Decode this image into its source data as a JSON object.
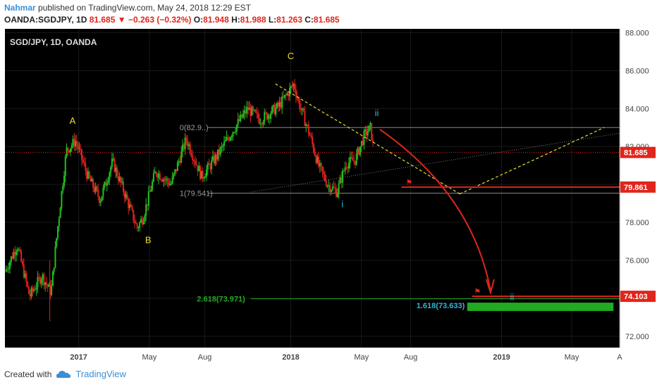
{
  "header": {
    "author": "Nahmar",
    "published": "published on TradingView.com, May 24, 2018 12:29 EST",
    "symbol": "OANDA:SGDJPY, 1D",
    "last": "81.685",
    "change": "−0.263 (−0.32%)",
    "o_label": "O:",
    "o_val": "81.948",
    "h_label": "H:",
    "h_val": "81.988",
    "l_label": "L:",
    "l_val": "81.263",
    "c_label": "C:",
    "c_val": "81.685"
  },
  "chart_title": "SGD/JPY, 1D, OANDA",
  "footer": {
    "created": "Created with",
    "brand": "TradingView"
  },
  "colors": {
    "up": "#22c022",
    "down": "#e22020",
    "bg": "#000000",
    "accent": "#e0251b",
    "wave": "#e5e030",
    "subwave": "#31b6d6",
    "target": "#22aa22"
  },
  "chart_data": {
    "type": "candlestick",
    "title": "SGD/JPY, 1D, OANDA",
    "ylim": [
      71.4,
      88.2
    ],
    "y_ticks": [
      "88.000",
      "86.000",
      "84.000",
      "82.000",
      "80.000",
      "78.000",
      "76.000",
      "74.000",
      "72.000"
    ],
    "x_ticks": [
      {
        "label": "2017",
        "t": 0.12
      },
      {
        "label": "May",
        "t": 0.235
      },
      {
        "label": "Aug",
        "t": 0.325
      },
      {
        "label": "2018",
        "t": 0.465
      },
      {
        "label": "May",
        "t": 0.58
      },
      {
        "label": "Aug",
        "t": 0.66
      },
      {
        "label": "2019",
        "t": 0.808
      },
      {
        "label": "May",
        "t": 0.922
      },
      {
        "label": "A",
        "t": 1.0
      }
    ],
    "price_path": [
      [
        0.0,
        75.4
      ],
      [
        0.02,
        76.8
      ],
      [
        0.04,
        74.1
      ],
      [
        0.06,
        75.2
      ],
      [
        0.075,
        74.3
      ],
      [
        0.085,
        77.5
      ],
      [
        0.1,
        81.8
      ],
      [
        0.115,
        82.3
      ],
      [
        0.135,
        80.4
      ],
      [
        0.155,
        79.2
      ],
      [
        0.175,
        81.2
      ],
      [
        0.195,
        79.5
      ],
      [
        0.215,
        77.7
      ],
      [
        0.225,
        78.3
      ],
      [
        0.245,
        80.7
      ],
      [
        0.27,
        80.0
      ],
      [
        0.295,
        82.4
      ],
      [
        0.32,
        80.4
      ],
      [
        0.345,
        81.5
      ],
      [
        0.37,
        82.8
      ],
      [
        0.395,
        84.0
      ],
      [
        0.415,
        83.4
      ],
      [
        0.445,
        84.1
      ],
      [
        0.462,
        84.9
      ],
      [
        0.47,
        85.3
      ],
      [
        0.478,
        84.3
      ],
      [
        0.495,
        82.7
      ],
      [
        0.51,
        81.0
      ],
      [
        0.525,
        80.0
      ],
      [
        0.54,
        79.6
      ],
      [
        0.555,
        81.1
      ],
      [
        0.57,
        81.3
      ],
      [
        0.585,
        82.6
      ],
      [
        0.595,
        83.0
      ],
      [
        0.6,
        81.7
      ]
    ],
    "last_price": 81.685,
    "price_labels": [
      {
        "value": "81.685",
        "y": 81.685,
        "color": "#e0251b"
      },
      {
        "value": "79.861",
        "y": 79.861,
        "color": "#e0251b"
      },
      {
        "value": "74.103",
        "y": 74.103,
        "color": "#e0251b"
      }
    ],
    "fib_levels": [
      {
        "label": "0(82.9..)",
        "y": 83.0,
        "x0": 0.33,
        "x1": 1.0,
        "color": "#888888"
      },
      {
        "label": "1(79.541)",
        "y": 79.541,
        "x0": 0.33,
        "x1": 1.0,
        "color": "#888888"
      }
    ],
    "targets": [
      {
        "label": "2.618(73.971)",
        "y": 73.971,
        "color": "#22aa22"
      },
      {
        "label": "1.618(73.633)",
        "y": 73.633,
        "color": "#31b6d6"
      }
    ],
    "wave_labels": [
      {
        "text": "A",
        "t": 0.11,
        "y": 83.2,
        "color": "#e5e030"
      },
      {
        "text": "B",
        "t": 0.233,
        "y": 76.9,
        "color": "#e5e030"
      },
      {
        "text": "C",
        "t": 0.465,
        "y": 86.6,
        "color": "#e5e030"
      },
      {
        "text": "ii",
        "t": 0.605,
        "y": 83.6,
        "color": "#31b6d6"
      },
      {
        "text": "i",
        "t": 0.549,
        "y": 78.8,
        "color": "#31b6d6"
      },
      {
        "text": "ii",
        "t": 0.825,
        "y": 73.9,
        "color": "#31b6d6"
      }
    ],
    "hline_red_y": 79.861,
    "target_line_y": 74.103
  }
}
